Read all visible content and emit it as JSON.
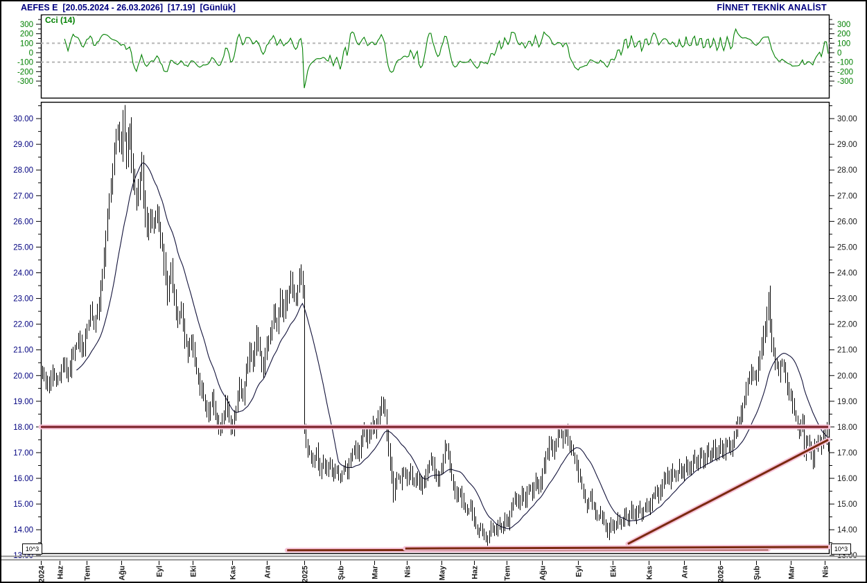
{
  "header": {
    "title": "AEFES E  [20.05.2024 - 26.03.2026]  [17.19]  [Günlük]",
    "brand": "FİNNET TEKNİK ANALİST"
  },
  "indicator_panel": {
    "label": "Cci (14)",
    "axis_ticks": [
      300,
      200,
      100,
      0,
      -100,
      -200,
      -300
    ],
    "reference_lines": [
      100,
      -100
    ]
  },
  "price_panel": {
    "axis_ticks": [
      30,
      29,
      28,
      27,
      26,
      25,
      24,
      23,
      22,
      21,
      20,
      19,
      18,
      17,
      16,
      15,
      14,
      13
    ],
    "scale_label": "10^3"
  },
  "colors": {
    "navy": "#00007f",
    "axis_text": "#1a1a1a",
    "cci_green": "#008000",
    "bar": "#000000",
    "ma": "#12123a",
    "glow_pink": "#f6c3d8",
    "dash_gray": "#b5b5b5",
    "frame": "#000000",
    "splitter_gray": "#8f8f8f"
  },
  "chart_data": {
    "type": "ohlc-bar",
    "symbol": "AEFES E",
    "period": "Günlük",
    "date_range": [
      "20.05.2024",
      "26.03.2026"
    ],
    "last_price": 17.19,
    "ylim": [
      13.06,
      30.65
    ],
    "bars_count": 460,
    "seed": 20240520,
    "ma_period": 21,
    "cci_period": 14,
    "x_ticks": [
      {
        "day": 0,
        "label": "2024"
      },
      {
        "day": 10,
        "label": "Haz"
      },
      {
        "day": 26,
        "label": "Tem"
      },
      {
        "day": 46,
        "label": "Ağu"
      },
      {
        "day": 68,
        "label": "Eyl"
      },
      {
        "day": 88,
        "label": "Eki"
      },
      {
        "day": 111,
        "label": "Kas"
      },
      {
        "day": 131,
        "label": "Ara"
      },
      {
        "day": 153,
        "label": "2025"
      },
      {
        "day": 174,
        "label": "Şub"
      },
      {
        "day": 194,
        "label": "Mar"
      },
      {
        "day": 213,
        "label": "Nis"
      },
      {
        "day": 233,
        "label": "May"
      },
      {
        "day": 252,
        "label": "Haz"
      },
      {
        "day": 271,
        "label": "Tem"
      },
      {
        "day": 292,
        "label": "Ağu"
      },
      {
        "day": 313,
        "label": "Eyl"
      },
      {
        "day": 333,
        "label": "Eki"
      },
      {
        "day": 354,
        "label": "Kas"
      },
      {
        "day": 375,
        "label": "Ara"
      },
      {
        "day": 396,
        "label": "2026"
      },
      {
        "day": 417,
        "label": "Şub"
      },
      {
        "day": 437,
        "label": "Mar"
      },
      {
        "day": 457,
        "label": "Nis"
      }
    ],
    "price_keypoints": [
      [
        0,
        20.2
      ],
      [
        3,
        19.5
      ],
      [
        6,
        20.1
      ],
      [
        9,
        19.8
      ],
      [
        12,
        20.4
      ],
      [
        15,
        20.0
      ],
      [
        18,
        20.9
      ],
      [
        21,
        21.4
      ],
      [
        23,
        20.9
      ],
      [
        26,
        21.8
      ],
      [
        28,
        22.4
      ],
      [
        30,
        21.9
      ],
      [
        32,
        22.6
      ],
      [
        34,
        23.3
      ],
      [
        36,
        24.6
      ],
      [
        38,
        26.3
      ],
      [
        40,
        27.2
      ],
      [
        42,
        28.8
      ],
      [
        44,
        29.6
      ],
      [
        46,
        28.9
      ],
      [
        47,
        30.1
      ],
      [
        48,
        29.4
      ],
      [
        49,
        28.5
      ],
      [
        50,
        29.2
      ],
      [
        51,
        29.6
      ],
      [
        52,
        28.3
      ],
      [
        53,
        27.7
      ],
      [
        55,
        26.7
      ],
      [
        57,
        27.8
      ],
      [
        58,
        28.3
      ],
      [
        59,
        26.9
      ],
      [
        61,
        25.6
      ],
      [
        63,
        26.4
      ],
      [
        65,
        25.8
      ],
      [
        67,
        26.2
      ],
      [
        69,
        25.3
      ],
      [
        71,
        24.4
      ],
      [
        73,
        23.2
      ],
      [
        75,
        24.1
      ],
      [
        77,
        23.0
      ],
      [
        79,
        22.1
      ],
      [
        81,
        22.6
      ],
      [
        83,
        21.5
      ],
      [
        85,
        20.9
      ],
      [
        87,
        21.3
      ],
      [
        89,
        20.6
      ],
      [
        91,
        19.9
      ],
      [
        93,
        19.4
      ],
      [
        95,
        18.9
      ],
      [
        97,
        18.4
      ],
      [
        99,
        19.3
      ],
      [
        101,
        18.5
      ],
      [
        103,
        17.8
      ],
      [
        105,
        18.3
      ],
      [
        107,
        19.0
      ],
      [
        109,
        18.3
      ],
      [
        111,
        17.9
      ],
      [
        113,
        18.8
      ],
      [
        115,
        19.6
      ],
      [
        117,
        19.1
      ],
      [
        119,
        20.1
      ],
      [
        121,
        21.0
      ],
      [
        123,
        20.5
      ],
      [
        125,
        21.6
      ],
      [
        127,
        20.8
      ],
      [
        129,
        20.4
      ],
      [
        131,
        21.2
      ],
      [
        133,
        21.7
      ],
      [
        135,
        22.4
      ],
      [
        137,
        21.9
      ],
      [
        139,
        23.0
      ],
      [
        141,
        22.4
      ],
      [
        143,
        23.2
      ],
      [
        145,
        23.6
      ],
      [
        147,
        22.9
      ],
      [
        149,
        23.4
      ],
      [
        151,
        23.9
      ],
      [
        152,
        23.1
      ],
      [
        153,
        17.9
      ],
      [
        154,
        17.4
      ],
      [
        156,
        17.0
      ],
      [
        158,
        16.5
      ],
      [
        160,
        17.0
      ],
      [
        162,
        16.3
      ],
      [
        164,
        16.7
      ],
      [
        166,
        16.2
      ],
      [
        168,
        16.6
      ],
      [
        170,
        16.1
      ],
      [
        172,
        16.4
      ],
      [
        174,
        16.0
      ],
      [
        176,
        16.5
      ],
      [
        178,
        16.2
      ],
      [
        180,
        16.9
      ],
      [
        182,
        17.2
      ],
      [
        184,
        16.8
      ],
      [
        186,
        17.4
      ],
      [
        188,
        17.9
      ],
      [
        190,
        17.5
      ],
      [
        192,
        18.1
      ],
      [
        194,
        17.8
      ],
      [
        196,
        18.4
      ],
      [
        198,
        19.0
      ],
      [
        200,
        18.7
      ],
      [
        201,
        17.8
      ],
      [
        202,
        17.1
      ],
      [
        204,
        16.1
      ],
      [
        205,
        15.4
      ],
      [
        207,
        16.2
      ],
      [
        209,
        15.9
      ],
      [
        211,
        16.3
      ],
      [
        213,
        15.9
      ],
      [
        215,
        16.2
      ],
      [
        217,
        15.8
      ],
      [
        219,
        16.1
      ],
      [
        221,
        15.7
      ],
      [
        223,
        16.0
      ],
      [
        225,
        16.4
      ],
      [
        227,
        16.8
      ],
      [
        229,
        16.3
      ],
      [
        231,
        15.9
      ],
      [
        233,
        16.5
      ],
      [
        235,
        17.1
      ],
      [
        236,
        17.3
      ],
      [
        238,
        16.4
      ],
      [
        240,
        15.7
      ],
      [
        242,
        15.2
      ],
      [
        244,
        15.5
      ],
      [
        246,
        14.9
      ],
      [
        248,
        14.6
      ],
      [
        250,
        14.9
      ],
      [
        252,
        14.3
      ],
      [
        254,
        13.9
      ],
      [
        256,
        14.2
      ],
      [
        258,
        13.7
      ],
      [
        260,
        13.6
      ],
      [
        262,
        14.1
      ],
      [
        264,
        13.8
      ],
      [
        266,
        14.3
      ],
      [
        268,
        14.0
      ],
      [
        270,
        14.5
      ],
      [
        272,
        14.2
      ],
      [
        274,
        14.8
      ],
      [
        276,
        15.3
      ],
      [
        278,
        15.0
      ],
      [
        280,
        15.5
      ],
      [
        282,
        15.1
      ],
      [
        284,
        15.7
      ],
      [
        286,
        15.4
      ],
      [
        288,
        15.9
      ],
      [
        290,
        15.6
      ],
      [
        292,
        16.2
      ],
      [
        294,
        16.8
      ],
      [
        296,
        17.3
      ],
      [
        298,
        17.0
      ],
      [
        300,
        17.5
      ],
      [
        302,
        17.8
      ],
      [
        304,
        17.5
      ],
      [
        306,
        17.9
      ],
      [
        308,
        17.3
      ],
      [
        310,
        17.0
      ],
      [
        312,
        16.4
      ],
      [
        314,
        15.9
      ],
      [
        316,
        15.4
      ],
      [
        318,
        15.0
      ],
      [
        320,
        15.3
      ],
      [
        322,
        14.8
      ],
      [
        324,
        14.4
      ],
      [
        326,
        14.7
      ],
      [
        328,
        14.2
      ],
      [
        330,
        13.9
      ],
      [
        332,
        14.3
      ],
      [
        334,
        14.1
      ],
      [
        336,
        14.5
      ],
      [
        338,
        14.2
      ],
      [
        340,
        14.6
      ],
      [
        342,
        14.3
      ],
      [
        344,
        14.8
      ],
      [
        346,
        14.5
      ],
      [
        348,
        14.9
      ],
      [
        350,
        14.6
      ],
      [
        352,
        15.0
      ],
      [
        354,
        14.8
      ],
      [
        356,
        15.2
      ],
      [
        358,
        15.6
      ],
      [
        360,
        15.3
      ],
      [
        362,
        15.8
      ],
      [
        364,
        16.2
      ],
      [
        366,
        15.9
      ],
      [
        368,
        16.3
      ],
      [
        370,
        16.1
      ],
      [
        372,
        16.5
      ],
      [
        374,
        16.2
      ],
      [
        376,
        16.6
      ],
      [
        378,
        16.4
      ],
      [
        380,
        16.8
      ],
      [
        382,
        16.5
      ],
      [
        384,
        17.0
      ],
      [
        386,
        16.7
      ],
      [
        388,
        17.1
      ],
      [
        390,
        16.8
      ],
      [
        392,
        17.2
      ],
      [
        394,
        16.9
      ],
      [
        396,
        17.3
      ],
      [
        398,
        17.0
      ],
      [
        400,
        17.4
      ],
      [
        402,
        17.2
      ],
      [
        404,
        17.6
      ],
      [
        406,
        18.0
      ],
      [
        408,
        18.5
      ],
      [
        410,
        19.1
      ],
      [
        412,
        19.7
      ],
      [
        414,
        20.2
      ],
      [
        416,
        19.9
      ],
      [
        418,
        20.5
      ],
      [
        420,
        21.1
      ],
      [
        422,
        21.9
      ],
      [
        424,
        23.0
      ],
      [
        425,
        21.9
      ],
      [
        426,
        21.2
      ],
      [
        428,
        20.6
      ],
      [
        430,
        20.2
      ],
      [
        432,
        20.6
      ],
      [
        434,
        19.8
      ],
      [
        436,
        19.3
      ],
      [
        438,
        18.9
      ],
      [
        440,
        18.3
      ],
      [
        442,
        17.8
      ],
      [
        444,
        18.2
      ],
      [
        445,
        17.0
      ],
      [
        446,
        17.6
      ],
      [
        448,
        17.3
      ],
      [
        450,
        16.6
      ],
      [
        451,
        17.2
      ],
      [
        453,
        17.6
      ],
      [
        455,
        17.3
      ],
      [
        457,
        17.8
      ],
      [
        459,
        17.19
      ]
    ],
    "trend_lines": [
      {
        "name": "resistance-18",
        "x1_day": 0,
        "y1": 18.0,
        "x2_day": 459,
        "y2": 18.0,
        "color": "#7a1f26"
      },
      {
        "name": "ascending-support",
        "x1_day": 342,
        "y1": 13.45,
        "x2_day": 459,
        "y2": 17.5,
        "color": "#7b2a10"
      },
      {
        "name": "base-support-1",
        "x1_day": 143,
        "y1": 13.2,
        "x2_day": 424,
        "y2": 13.24,
        "color": "#7b2a10"
      },
      {
        "name": "base-support-2",
        "x1_day": 212,
        "y1": 13.27,
        "x2_day": 459,
        "y2": 13.33,
        "color": "#7b2a10"
      }
    ]
  }
}
